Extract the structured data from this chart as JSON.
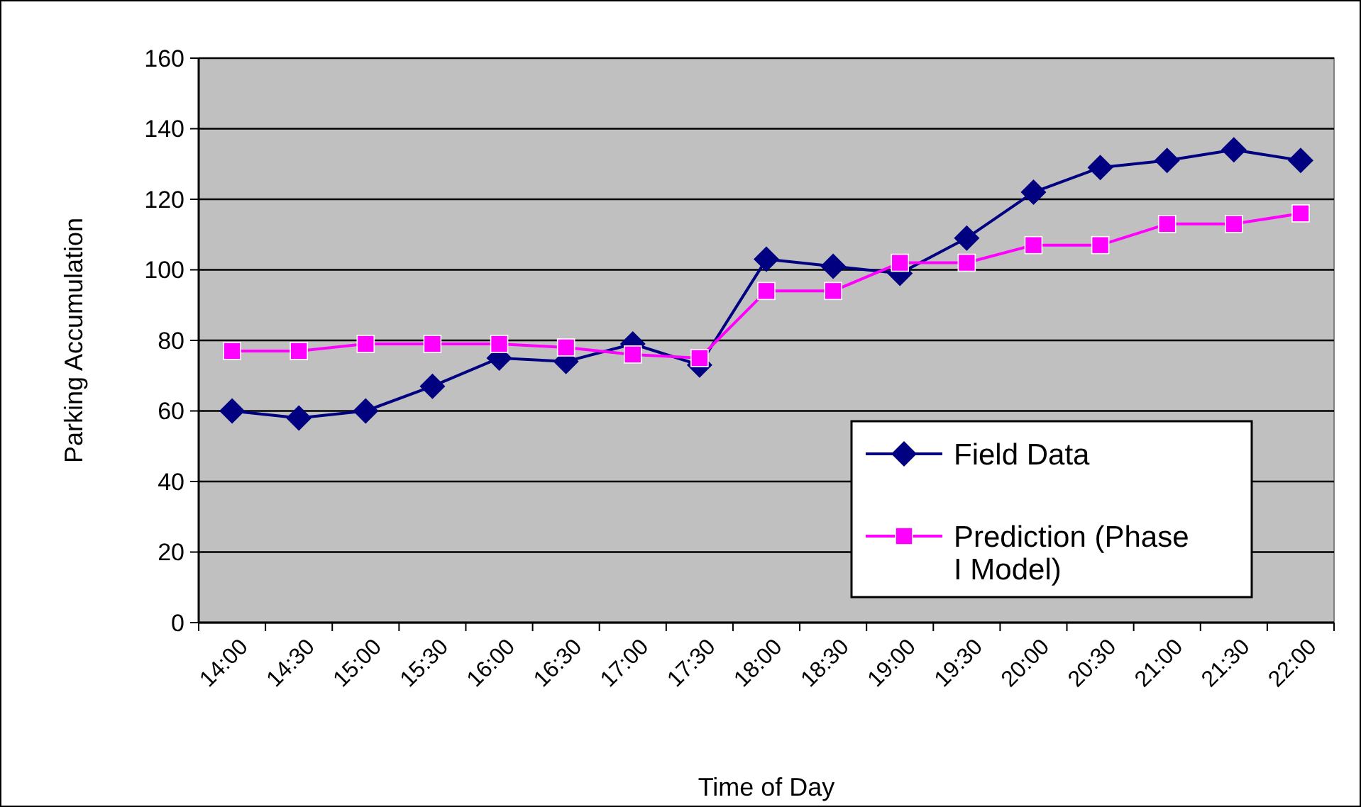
{
  "chart_data": {
    "type": "line",
    "xlabel": "Time of Day",
    "ylabel": "Parking Accumulation",
    "categories": [
      "14:00",
      "14:30",
      "15:00",
      "15:30",
      "16:00",
      "16:30",
      "17:00",
      "17:30",
      "18:00",
      "18:30",
      "19:00",
      "19:30",
      "20:00",
      "20:30",
      "21:00",
      "21:30",
      "22:00"
    ],
    "series": [
      {
        "name": "Field Data",
        "color": "#000080",
        "marker": "diamond",
        "values": [
          60,
          58,
          60,
          67,
          75,
          74,
          79,
          73,
          103,
          101,
          99,
          109,
          122,
          129,
          131,
          134,
          131
        ]
      },
      {
        "name": "Prediction (Phase I Model)",
        "color": "#ff00ff",
        "marker": "square",
        "values": [
          77,
          77,
          79,
          79,
          79,
          78,
          76,
          75,
          94,
          94,
          102,
          102,
          107,
          107,
          113,
          113,
          116
        ]
      }
    ],
    "ylim": [
      0,
      160
    ],
    "yticks": [
      0,
      20,
      40,
      60,
      80,
      100,
      120,
      140,
      160
    ],
    "grid": "y",
    "legend": "bottom right"
  }
}
